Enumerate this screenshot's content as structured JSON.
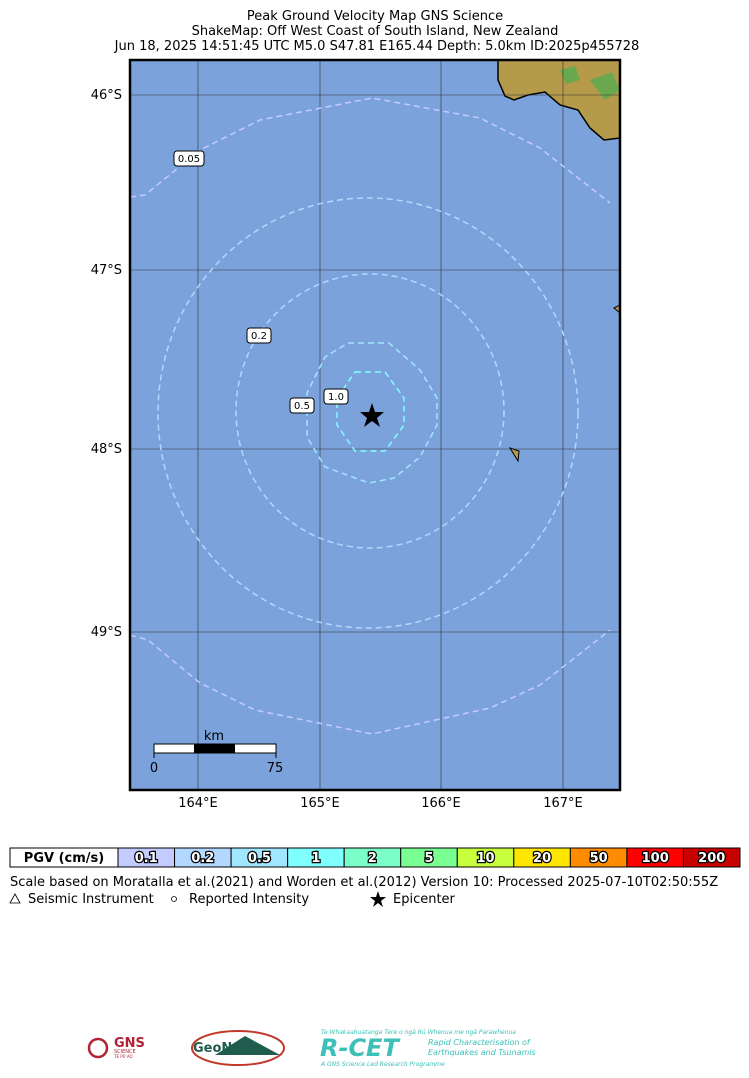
{
  "header": {
    "title": "Peak Ground Velocity Map GNS Science",
    "region": "ShakeMap: Off West Coast of South Island, New Zealand",
    "event": "Jun 18, 2025 14:51:45 UTC M5.0 S47.81 E165.44 Depth: 5.0km ID:2025p455728"
  },
  "map": {
    "lat_labels": [
      "46°S",
      "47°S",
      "48°S",
      "49°S"
    ],
    "lon_labels": [
      "164°E",
      "165°E",
      "166°E",
      "167°E"
    ],
    "contour_labels": [
      "0.05",
      "0.2",
      "0.5",
      "1.0"
    ],
    "scale_bar": {
      "unit": "km",
      "start": "0",
      "end": "75"
    }
  },
  "colorbar": {
    "title": "PGV (cm/s)",
    "items": [
      {
        "label": "0.1",
        "color": "#c3cbff"
      },
      {
        "label": "0.2",
        "color": "#b2d8ff"
      },
      {
        "label": "0.5",
        "color": "#a0e6ff"
      },
      {
        "label": "1",
        "color": "#80ffff"
      },
      {
        "label": "2",
        "color": "#7affc8"
      },
      {
        "label": "5",
        "color": "#7aff93"
      },
      {
        "label": "10",
        "color": "#c8ff3c"
      },
      {
        "label": "20",
        "color": "#ffe600"
      },
      {
        "label": "50",
        "color": "#ff8c00"
      },
      {
        "label": "100",
        "color": "#ff0000"
      },
      {
        "label": "200",
        "color": "#c80000"
      }
    ]
  },
  "footer": {
    "note": "Scale based on Moratalla et al.(2021) and Worden et al.(2012) Version 10: Processed 2025-07-10T02:50:55Z",
    "legend": [
      "Seismic Instrument",
      "Reported Intensity",
      "Epicenter"
    ]
  },
  "logos": {
    "gns": [
      "GNS",
      "SCIENCE",
      "TE PŪ AO"
    ],
    "geonet": "GeoNet",
    "rcet": {
      "tagline": "Te Whakaahuatanga Tere o ngā Rū Whenua me ngā Parawhenua",
      "name": "R-CET",
      "line1": "Rapid Characterisation of",
      "line2": "Earthquakes and Tsunamis",
      "footer": "A GNS Science Led Research Programme"
    }
  }
}
